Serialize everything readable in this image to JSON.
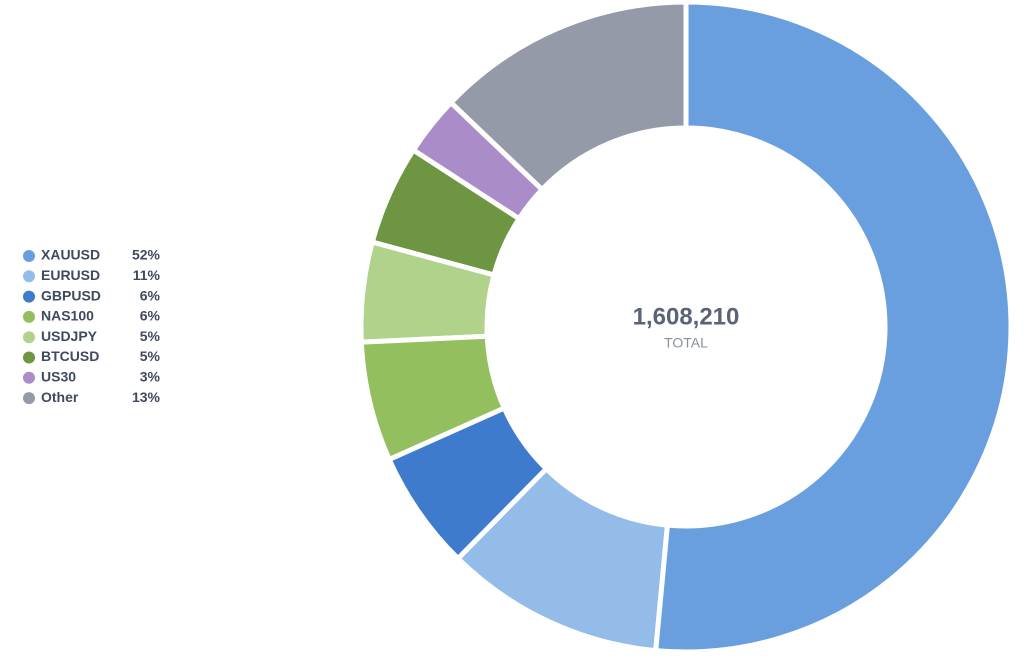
{
  "chart_data": {
    "type": "donut",
    "categories": [
      "XAUUSD",
      "EURUSD",
      "GBPUSD",
      "NAS100",
      "USDJPY",
      "BTCUSD",
      "US30",
      "Other"
    ],
    "values": [
      52,
      11,
      6,
      6,
      5,
      5,
      3,
      13
    ],
    "value_labels": [
      "52%",
      "11%",
      "6%",
      "6%",
      "5%",
      "5%",
      "3%",
      "13%"
    ],
    "colors": [
      "#6a9fdf",
      "#94bce8",
      "#3f7bcc",
      "#94bf5f",
      "#b1d28a",
      "#6e9642",
      "#a98cc8",
      "#959aa8"
    ],
    "total": {
      "value": 1608210,
      "label": "1,608,210"
    },
    "total_caption": "TOTAL",
    "legend": "left"
  }
}
